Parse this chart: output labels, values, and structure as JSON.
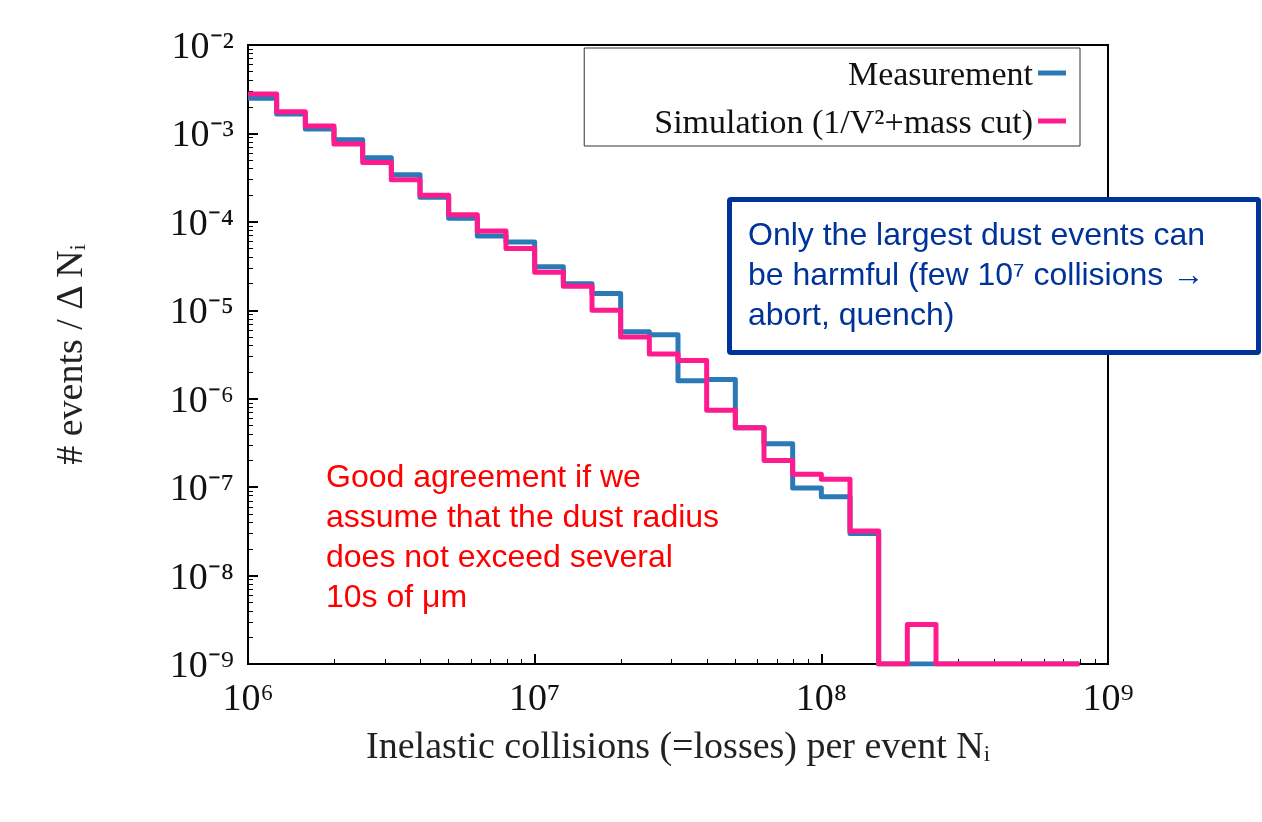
{
  "chart_data": {
    "type": "histogram",
    "xlabel": "Inelastic collisions (=losses) per event Nᵢ",
    "ylabel": "# events / Δ Nᵢ",
    "bins": [
      1000000,
      1259000,
      1585000,
      1995000,
      2512000,
      3162000,
      3981000,
      5012000,
      6310000,
      7943000,
      10000000,
      12590000,
      15850000,
      19950000,
      25120000,
      31620000,
      39810000,
      50120000,
      63100000,
      79430000,
      100000000,
      125900000,
      158500000,
      199500000,
      251200000,
      316200000,
      398100000,
      501200000,
      631000000,
      794300000
    ],
    "series": [
      {
        "name": "Measurement",
        "color": "#2a7ab8",
        "values": [
          0.0025,
          0.00166,
          0.00112,
          0.00085,
          0.00053,
          0.00034,
          0.00019,
          0.00011,
          6.9e-05,
          5.9e-05,
          3.1e-05,
          2e-05,
          1.55e-05,
          5.7e-06,
          5.3e-06,
          1.6e-06,
          1.65e-06,
          4.7e-07,
          3.1e-07,
          9.8e-08,
          7.8e-08,
          3e-08,
          1e-09,
          1e-09,
          1e-09,
          1e-09,
          1e-09,
          1e-09,
          1e-09
        ]
      },
      {
        "name": "Simulation (1/V²+mass cut)",
        "color": "#ff1b8d",
        "values": [
          0.0028,
          0.00176,
          0.00121,
          0.00076,
          0.00047,
          0.0003,
          0.0002,
          0.00012,
          7.9e-05,
          5e-05,
          2.7e-05,
          1.87e-05,
          1e-05,
          5e-06,
          3.2e-06,
          2.7e-06,
          7.4e-07,
          4.7e-07,
          2e-07,
          1.4e-07,
          1.23e-07,
          3.2e-08,
          1e-09,
          2.8e-09,
          1e-09,
          1e-09,
          1e-09,
          1e-09,
          1e-09
        ]
      }
    ],
    "log": "xy",
    "xlim": [
      1000000,
      1000000000
    ],
    "ylim": [
      1e-09,
      0.01
    ],
    "xticks": [
      {
        "value": 1000000,
        "label": "10⁶"
      },
      {
        "value": 10000000,
        "label": "10⁷"
      },
      {
        "value": 100000000,
        "label": "10⁸"
      },
      {
        "value": 1000000000,
        "label": "10⁹"
      }
    ],
    "yticks": [
      {
        "value": 1e-09,
        "label": "10⁻⁹"
      },
      {
        "value": 1e-08,
        "label": "10⁻⁸"
      },
      {
        "value": 1e-07,
        "label": "10⁻⁷"
      },
      {
        "value": 1e-06,
        "label": "10⁻⁶"
      },
      {
        "value": 1e-05,
        "label": "10⁻⁵"
      },
      {
        "value": 0.0001,
        "label": "10⁻⁴"
      },
      {
        "value": 0.001,
        "label": "10⁻³"
      },
      {
        "value": 0.01,
        "label": "10⁻²"
      }
    ],
    "legend": "top right",
    "grid": false,
    "annotations": [
      "Only the largest dust events can be harmful (few 10⁷ collisions → abort, quench)",
      "Good agreement if we assume that the dust radius does not exceed several 10s of μm"
    ]
  }
}
